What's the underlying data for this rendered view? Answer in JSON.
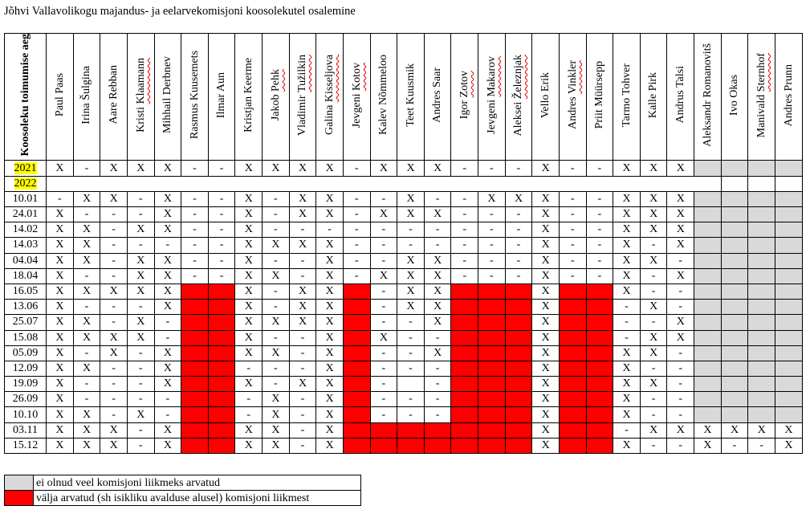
{
  "title": "Jõhvi Vallavolikogu majandus- ja eelarvekomisjoni koosolekutel osalemine",
  "first_column_header": "Koosoleku toimumise aeg",
  "members": [
    {
      "name": "Paul Paas"
    },
    {
      "name": "Irina Šulgina"
    },
    {
      "name": "Aare Rebban"
    },
    {
      "name": "Kristi Klaamann",
      "flagged": true
    },
    {
      "name": "Mihhail Derbnev"
    },
    {
      "name": "Rasmus Kuusemets"
    },
    {
      "name": "Ilmar Aun"
    },
    {
      "name": "Kristjan Keerme"
    },
    {
      "name": "Jakob Pehk",
      "flagged": true
    },
    {
      "name": "Vladimir Tužilkin",
      "flagged": true
    },
    {
      "name": "Galina Kisseljova",
      "flagged": true
    },
    {
      "name": "Jevgeni Kotov",
      "flagged": true
    },
    {
      "name": "Kalev Nõmmeloo"
    },
    {
      "name": "Teet Kuusmik"
    },
    {
      "name": "Andres Saar"
    },
    {
      "name": "Igor Zotov",
      "flagged": true
    },
    {
      "name": "Jevgeni Makarov",
      "flagged": true
    },
    {
      "name": "Aleksei Železnjak",
      "flagged": true
    },
    {
      "name": "Vello Erik"
    },
    {
      "name": "Andres Vinkler",
      "flagged": true
    },
    {
      "name": "Priit Müürsepp"
    },
    {
      "name": "Tarmo Tohver"
    },
    {
      "name": "Kalle Pirk"
    },
    {
      "name": "Andrus Talsi"
    },
    {
      "name": "Aleksandr Romanovitš"
    },
    {
      "name": "Ivo Okas"
    },
    {
      "name": "Manivald Sternhof",
      "flagged": true
    },
    {
      "name": "Andres Prunn"
    }
  ],
  "status_codes": {
    "R": "removed",
    "G": "not_yet_member"
  },
  "rows": [
    {
      "label": "2021",
      "year": true,
      "cells": [
        "X",
        "-",
        "X",
        "X",
        "X",
        "-",
        "-",
        "X",
        "X",
        "X",
        "X",
        "-",
        "X",
        "X",
        "X",
        "-",
        "-",
        "-",
        "X",
        "-",
        "-",
        "X",
        "X",
        "X",
        "G",
        "G",
        "G",
        "G"
      ]
    },
    {
      "label": "2022",
      "year": true,
      "section": true
    },
    {
      "label": "10.01",
      "cells": [
        "-",
        "X",
        "X",
        "-",
        "X",
        "-",
        "-",
        "X",
        "-",
        "X",
        "X",
        "-",
        "-",
        "X",
        "-",
        "-",
        "X",
        "X",
        "X",
        "-",
        "-",
        "X",
        "X",
        "X",
        "G",
        "G",
        "G",
        "G"
      ]
    },
    {
      "label": "24.01",
      "cells": [
        "X",
        "-",
        "-",
        "-",
        "X",
        "-",
        "-",
        "X",
        "-",
        "X",
        "X",
        "-",
        "X",
        "X",
        "X",
        "-",
        "-",
        "-",
        "X",
        "-",
        "-",
        "X",
        "X",
        "X",
        "G",
        "G",
        "G",
        "G"
      ]
    },
    {
      "label": "14.02",
      "cells": [
        "X",
        "X",
        "-",
        "X",
        "X",
        "-",
        "-",
        "X",
        "-",
        "-",
        "-",
        "-",
        "-",
        "-",
        "-",
        "-",
        "-",
        "-",
        "X",
        "-",
        "-",
        "X",
        "X",
        "X",
        "G",
        "G",
        "G",
        "G"
      ]
    },
    {
      "label": "14.03",
      "cells": [
        "X",
        "X",
        "-",
        "-",
        "-",
        "-",
        "-",
        "X",
        "X",
        "X",
        "X",
        "-",
        "-",
        "-",
        "-",
        "-",
        "-",
        "-",
        "X",
        "-",
        "-",
        "X",
        "-",
        "X",
        "G",
        "G",
        "G",
        "G"
      ]
    },
    {
      "label": "04.04",
      "cells": [
        "X",
        "X",
        "-",
        "X",
        "X",
        "-",
        "-",
        "X",
        "-",
        "-",
        "X",
        "-",
        "-",
        "X",
        "X",
        "-",
        "-",
        "-",
        "X",
        "-",
        "-",
        "X",
        "X",
        "-",
        "G",
        "G",
        "G",
        "G"
      ]
    },
    {
      "label": "18.04",
      "cells": [
        "X",
        "-",
        "-",
        "X",
        "X",
        "-",
        "-",
        "X",
        "X",
        "-",
        "X",
        "-",
        "X",
        "X",
        "X",
        "-",
        "-",
        "-",
        "X",
        "-",
        "-",
        "X",
        "-",
        "X",
        "G",
        "G",
        "G",
        "G"
      ]
    },
    {
      "label": "16.05",
      "cells": [
        "X",
        "X",
        "X",
        "X",
        "X",
        "R",
        "R",
        "X",
        "-",
        "X",
        "X",
        "R",
        "-",
        "X",
        "X",
        "R",
        "R",
        "R",
        "X",
        "R",
        "R",
        "X",
        "-",
        "-",
        "G",
        "G",
        "G",
        "G"
      ]
    },
    {
      "label": "13.06",
      "cells": [
        "X",
        "-",
        "-",
        "-",
        "X",
        "R",
        "R",
        "X",
        "-",
        "X",
        "X",
        "R",
        "-",
        "X",
        "X",
        "R",
        "R",
        "R",
        "X",
        "R",
        "R",
        "-",
        "X",
        "-",
        "G",
        "G",
        "G",
        "G"
      ]
    },
    {
      "label": "25.07",
      "cells": [
        "X",
        "X",
        "-",
        "X",
        "-",
        "R",
        "R",
        "X",
        "X",
        "X",
        "X",
        "R",
        "-",
        "-",
        "X",
        "R",
        "R",
        "R",
        "X",
        "R",
        "R",
        "-",
        "-",
        "X",
        "G",
        "G",
        "G",
        "G"
      ]
    },
    {
      "label": "15.08",
      "cells": [
        "X",
        "X",
        "X",
        "X",
        "-",
        "R",
        "R",
        "X",
        "-",
        "-",
        "X",
        "R",
        "X",
        "-",
        "-",
        "R",
        "R",
        "R",
        "X",
        "R",
        "R",
        "-",
        "X",
        "X",
        "G",
        "G",
        "G",
        "G"
      ]
    },
    {
      "label": "05.09",
      "cells": [
        "X",
        "-",
        "X",
        "-",
        "X",
        "R",
        "R",
        "X",
        "X",
        "-",
        "X",
        "R",
        "-",
        "-",
        "X",
        "R",
        "R",
        "R",
        "X",
        "R",
        "R",
        "X",
        "X",
        "-",
        "G",
        "G",
        "G",
        "G"
      ]
    },
    {
      "label": "12.09",
      "cells": [
        "X",
        "X",
        "-",
        "-",
        "X",
        "R",
        "R",
        "-",
        "-",
        "-",
        "X",
        "R",
        "-",
        "-",
        "-",
        "R",
        "R",
        "R",
        "X",
        "R",
        "R",
        "X",
        "-",
        "-",
        "G",
        "G",
        "G",
        "G"
      ]
    },
    {
      "label": "19.09",
      "cells": [
        "X",
        "-",
        "-",
        "-",
        "X",
        "R",
        "R",
        "X",
        "-",
        "X",
        "X",
        "R",
        "-",
        "",
        "-",
        "R",
        "R",
        "R",
        "X",
        "R",
        "R",
        "X",
        "X",
        "-",
        "G",
        "G",
        "G",
        "G"
      ]
    },
    {
      "label": "26.09",
      "cells": [
        "X",
        "-",
        "-",
        "-",
        "-",
        "R",
        "R",
        "-",
        "X",
        "-",
        "X",
        "R",
        "-",
        "-",
        "-",
        "R",
        "R",
        "R",
        "X",
        "R",
        "R",
        "X",
        "-",
        "-",
        "G",
        "G",
        "G",
        "G"
      ]
    },
    {
      "label": "10.10",
      "cells": [
        "X",
        "X",
        "-",
        "X",
        "-",
        "R",
        "R",
        "-",
        "X",
        "-",
        "X",
        "R",
        "-",
        "-",
        "-",
        "R",
        "R",
        "R",
        "X",
        "R",
        "R",
        "X",
        "-",
        "-",
        "G",
        "G",
        "G",
        "G"
      ]
    },
    {
      "label": "03.11",
      "cells": [
        "X",
        "X",
        "X",
        "-",
        "X",
        "R",
        "R",
        "X",
        "X",
        "-",
        "X",
        "R",
        "R",
        "R",
        "R",
        "R",
        "R",
        "R",
        "X",
        "R",
        "R",
        "-",
        "X",
        "X",
        "X",
        "X",
        "X",
        "X"
      ]
    },
    {
      "label": "15.12",
      "cells": [
        "X",
        "X",
        "X",
        "-",
        "X",
        "R",
        "R",
        "X",
        "X",
        "-",
        "X",
        "R",
        "R",
        "R",
        "R",
        "R",
        "R",
        "R",
        "X",
        "R",
        "R",
        "X",
        "-",
        "-",
        "X",
        "-",
        "-",
        "X"
      ]
    }
  ],
  "legend": [
    {
      "code": "G",
      "color": "#d9d9d9",
      "text": "ei olnud veel komisjoni liikmeks arvatud"
    },
    {
      "code": "R",
      "color": "#ff0000",
      "text": "välja arvatud (sh isikliku avalduse alusel) komisjoni liikmest"
    }
  ],
  "colors": {
    "removed": "#ff0000",
    "not_yet_member": "#d9d9d9",
    "year_highlight": "#ffff00"
  }
}
